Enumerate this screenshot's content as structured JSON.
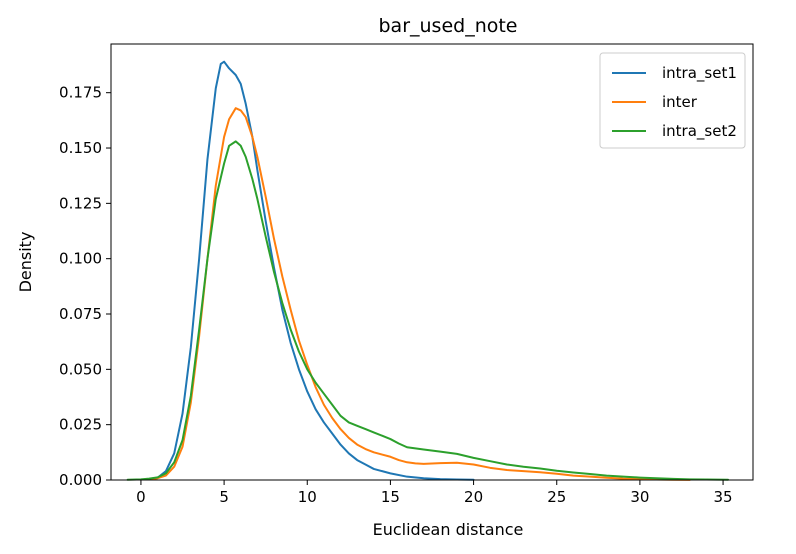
{
  "chart_data": {
    "type": "line",
    "title": "bar_used_note",
    "xlabel": "Euclidean distance",
    "ylabel": "Density",
    "xlim": [
      -1.8,
      36.8
    ],
    "ylim": [
      0,
      0.197
    ],
    "xticks": [
      0,
      5,
      10,
      15,
      20,
      25,
      30,
      35
    ],
    "yticks": [
      0.0,
      0.025,
      0.05,
      0.075,
      0.1,
      0.125,
      0.15,
      0.175
    ],
    "ytick_labels": [
      "0.000",
      "0.025",
      "0.050",
      "0.075",
      "0.100",
      "0.125",
      "0.150",
      "0.175"
    ],
    "xtick_labels": [
      "0",
      "5",
      "10",
      "15",
      "20",
      "25",
      "30",
      "35"
    ],
    "grid": false,
    "legend_position": "top-right",
    "series": [
      {
        "name": "intra_set1",
        "color": "#1f77b4",
        "points": [
          [
            0.5,
            0.0005
          ],
          [
            1,
            0.001
          ],
          [
            1.5,
            0.004
          ],
          [
            2,
            0.012
          ],
          [
            2.5,
            0.03
          ],
          [
            3,
            0.06
          ],
          [
            3.5,
            0.1
          ],
          [
            4,
            0.145
          ],
          [
            4.5,
            0.177
          ],
          [
            4.8,
            0.188
          ],
          [
            5,
            0.189
          ],
          [
            5.3,
            0.186
          ],
          [
            5.7,
            0.183
          ],
          [
            6,
            0.179
          ],
          [
            6.3,
            0.17
          ],
          [
            6.7,
            0.155
          ],
          [
            7,
            0.14
          ],
          [
            7.5,
            0.117
          ],
          [
            8,
            0.096
          ],
          [
            8.5,
            0.077
          ],
          [
            9,
            0.062
          ],
          [
            9.5,
            0.05
          ],
          [
            10,
            0.04
          ],
          [
            10.5,
            0.032
          ],
          [
            11,
            0.026
          ],
          [
            11.5,
            0.021
          ],
          [
            12,
            0.016
          ],
          [
            12.5,
            0.012
          ],
          [
            13,
            0.009
          ],
          [
            13.5,
            0.007
          ],
          [
            14,
            0.005
          ],
          [
            14.5,
            0.004
          ],
          [
            15,
            0.003
          ],
          [
            16,
            0.0015
          ],
          [
            17,
            0.0008
          ],
          [
            18,
            0.0004
          ],
          [
            19,
            0.0002
          ],
          [
            20,
            0.0001
          ]
        ]
      },
      {
        "name": "inter",
        "color": "#ff7f0e",
        "points": [
          [
            0.5,
            0.0003
          ],
          [
            1,
            0.0008
          ],
          [
            1.5,
            0.002
          ],
          [
            2,
            0.006
          ],
          [
            2.5,
            0.015
          ],
          [
            3,
            0.035
          ],
          [
            3.5,
            0.065
          ],
          [
            4,
            0.1
          ],
          [
            4.5,
            0.133
          ],
          [
            5,
            0.155
          ],
          [
            5.3,
            0.163
          ],
          [
            5.7,
            0.168
          ],
          [
            6,
            0.167
          ],
          [
            6.3,
            0.164
          ],
          [
            6.7,
            0.155
          ],
          [
            7,
            0.146
          ],
          [
            7.5,
            0.128
          ],
          [
            8,
            0.109
          ],
          [
            8.5,
            0.092
          ],
          [
            9,
            0.077
          ],
          [
            9.5,
            0.063
          ],
          [
            10,
            0.052
          ],
          [
            10.5,
            0.042
          ],
          [
            11,
            0.034
          ],
          [
            11.5,
            0.028
          ],
          [
            12,
            0.023
          ],
          [
            12.5,
            0.019
          ],
          [
            13,
            0.016
          ],
          [
            13.5,
            0.014
          ],
          [
            14,
            0.0125
          ],
          [
            14.5,
            0.0115
          ],
          [
            15,
            0.0105
          ],
          [
            15.5,
            0.009
          ],
          [
            16,
            0.008
          ],
          [
            16.5,
            0.0075
          ],
          [
            17,
            0.0073
          ],
          [
            18,
            0.0076
          ],
          [
            19,
            0.0078
          ],
          [
            20,
            0.007
          ],
          [
            21,
            0.0055
          ],
          [
            22,
            0.0045
          ],
          [
            23,
            0.004
          ],
          [
            24,
            0.0035
          ],
          [
            25,
            0.0028
          ],
          [
            26,
            0.002
          ],
          [
            27,
            0.0015
          ],
          [
            28,
            0.001
          ],
          [
            29,
            0.0006
          ],
          [
            30,
            0.0004
          ],
          [
            31,
            0.0002
          ],
          [
            32,
            0.0001
          ],
          [
            33,
            5e-05
          ]
        ]
      },
      {
        "name": "intra_set2",
        "color": "#2ca02c",
        "points": [
          [
            -0.8,
            0.0001
          ],
          [
            0,
            0.0003
          ],
          [
            0.5,
            0.0006
          ],
          [
            1,
            0.0012
          ],
          [
            1.5,
            0.003
          ],
          [
            2,
            0.008
          ],
          [
            2.5,
            0.018
          ],
          [
            3,
            0.038
          ],
          [
            3.5,
            0.068
          ],
          [
            4,
            0.1
          ],
          [
            4.5,
            0.127
          ],
          [
            5,
            0.143
          ],
          [
            5.3,
            0.151
          ],
          [
            5.7,
            0.153
          ],
          [
            6,
            0.151
          ],
          [
            6.3,
            0.146
          ],
          [
            6.7,
            0.136
          ],
          [
            7,
            0.127
          ],
          [
            7.5,
            0.11
          ],
          [
            8,
            0.094
          ],
          [
            8.5,
            0.08
          ],
          [
            9,
            0.068
          ],
          [
            9.5,
            0.058
          ],
          [
            10,
            0.05
          ],
          [
            10.5,
            0.044
          ],
          [
            11,
            0.039
          ],
          [
            11.5,
            0.034
          ],
          [
            12,
            0.029
          ],
          [
            12.5,
            0.026
          ],
          [
            13,
            0.0245
          ],
          [
            13.5,
            0.023
          ],
          [
            14,
            0.0215
          ],
          [
            14.5,
            0.02
          ],
          [
            15,
            0.0185
          ],
          [
            15.5,
            0.0165
          ],
          [
            16,
            0.0148
          ],
          [
            17,
            0.0138
          ],
          [
            18,
            0.0128
          ],
          [
            19,
            0.0118
          ],
          [
            20,
            0.01
          ],
          [
            21,
            0.0085
          ],
          [
            22,
            0.007
          ],
          [
            23,
            0.006
          ],
          [
            24,
            0.0052
          ],
          [
            25,
            0.0042
          ],
          [
            26,
            0.0034
          ],
          [
            27,
            0.0027
          ],
          [
            28,
            0.002
          ],
          [
            29,
            0.0015
          ],
          [
            30,
            0.0011
          ],
          [
            31,
            0.0008
          ],
          [
            32,
            0.0005
          ],
          [
            33,
            0.0003
          ],
          [
            34,
            0.0002
          ],
          [
            35.3,
            0.0001
          ]
        ]
      }
    ]
  }
}
